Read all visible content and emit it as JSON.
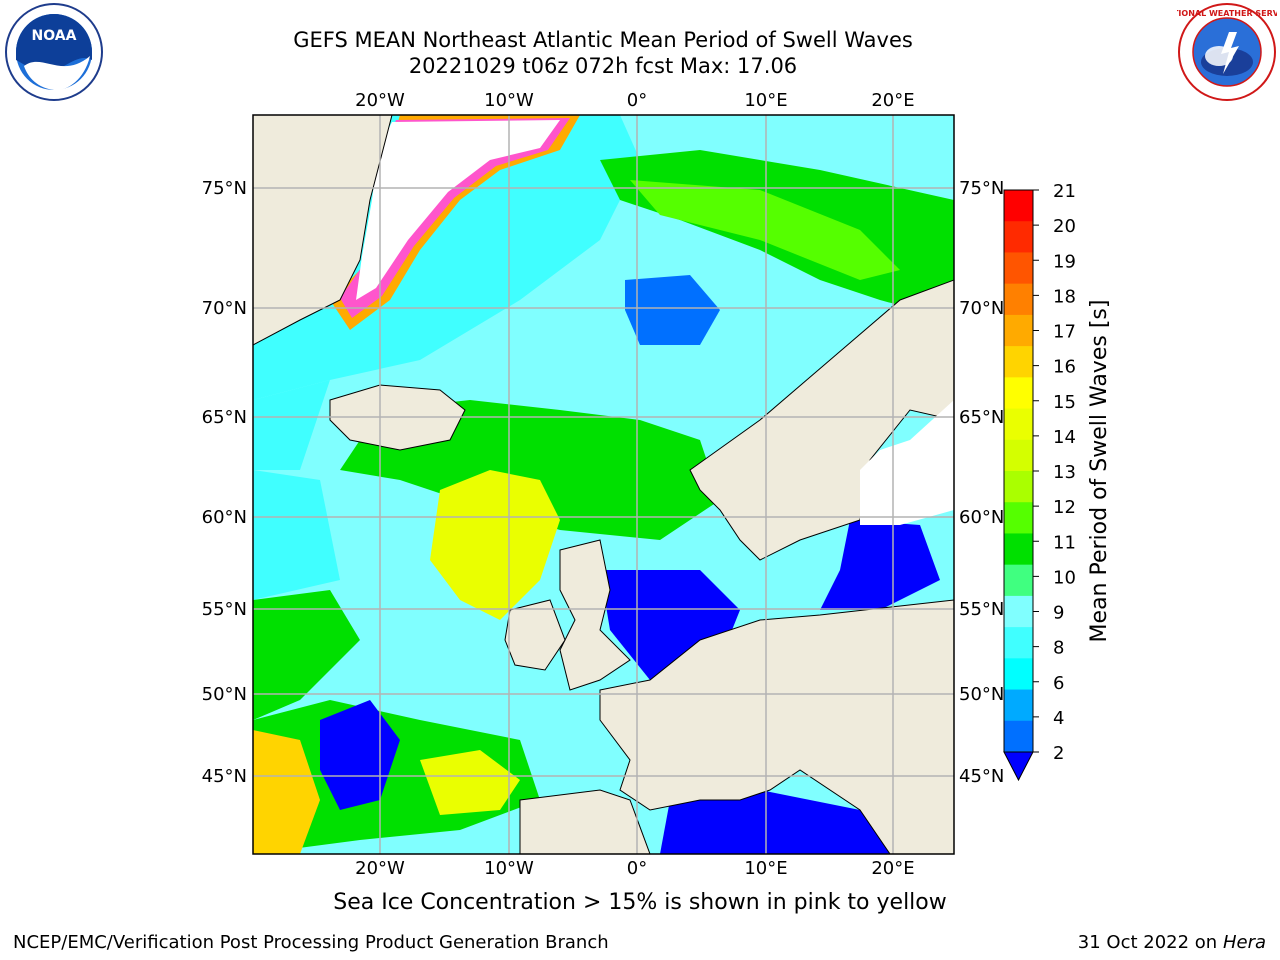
{
  "title_line1": "GEFS MEAN Northeast Atlantic Mean Period of Swell Waves",
  "title_line2": "20221029 t06z 072h fcst   Max: 17.06",
  "caption": "Sea Ice Concentration > 15% is shown in pink to yellow",
  "footer_left": "NCEP/EMC/Verification Post Processing Product Generation Branch",
  "footer_right_prefix": "31 Oct 2022 on ",
  "footer_right_host": "Hera",
  "logos": {
    "left": "noaa-logo",
    "right": "nws-logo",
    "left_text": "NOAA",
    "right_text": "NATIONAL WEATHER SERVICE"
  },
  "map": {
    "lon_labels": [
      "20°W",
      "10°W",
      "0°",
      "10°E",
      "20°E"
    ],
    "lat_labels": [
      "75°N",
      "70°N",
      "65°N",
      "60°N",
      "55°N",
      "50°N",
      "45°N"
    ]
  },
  "colorbar": {
    "label": "Mean Period of Swell Waves [s]",
    "ticks": [
      "21",
      "20",
      "19",
      "18",
      "17",
      "16",
      "15",
      "14",
      "13",
      "12",
      "11",
      "10",
      "9",
      "8",
      "6",
      "4",
      "2"
    ],
    "colors": [
      "#ff0000",
      "#ff2a00",
      "#ff5500",
      "#ff8000",
      "#ffaa00",
      "#ffd400",
      "#ffff00",
      "#eaff00",
      "#d4ff00",
      "#aaff00",
      "#55ff00",
      "#00e000",
      "#40ff80",
      "#80ffff",
      "#40ffff",
      "#00ffff",
      "#00aaff",
      "#0070ff"
    ],
    "extend_color": "#0000ff"
  }
}
